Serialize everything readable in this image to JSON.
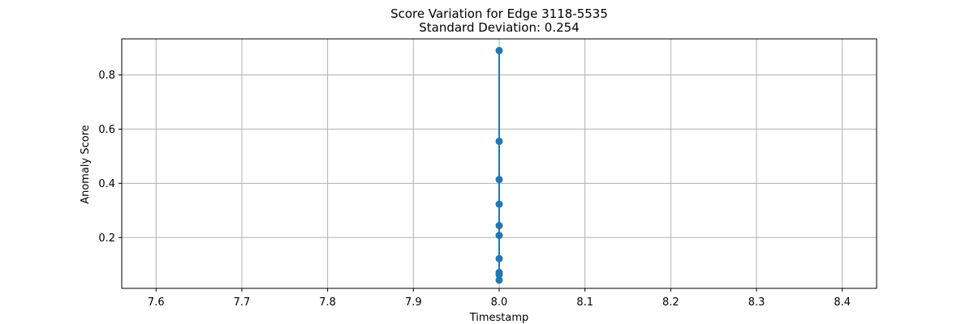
{
  "chart_data": {
    "type": "line",
    "title": "Score Variation for Edge 3118-5535",
    "subtitle": "Standard Deviation: 0.254",
    "xlabel": "Timestamp",
    "ylabel": "Anomaly Score",
    "xlim": [
      7.56,
      8.44
    ],
    "ylim": [
      0.0125,
      0.933
    ],
    "xticks": [
      7.6,
      7.7,
      7.8,
      7.9,
      8.0,
      8.1,
      8.2,
      8.3,
      8.4
    ],
    "xtick_labels": [
      "7.6",
      "7.7",
      "7.8",
      "7.9",
      "8.0",
      "8.1",
      "8.2",
      "8.3",
      "8.4"
    ],
    "yticks": [
      0.2,
      0.4,
      0.6,
      0.8
    ],
    "ytick_labels": [
      "0.2",
      "0.4",
      "0.6",
      "0.8"
    ],
    "grid": true,
    "series": [
      {
        "color": "#1f77b4",
        "marker": "circle",
        "x": [
          8.0,
          8.0,
          8.0,
          8.0,
          8.0,
          8.0,
          8.0,
          8.0,
          8.0,
          8.0
        ],
        "y": [
          0.89,
          0.555,
          0.414,
          0.323,
          0.244,
          0.208,
          0.122,
          0.071,
          0.063,
          0.043
        ]
      }
    ]
  }
}
